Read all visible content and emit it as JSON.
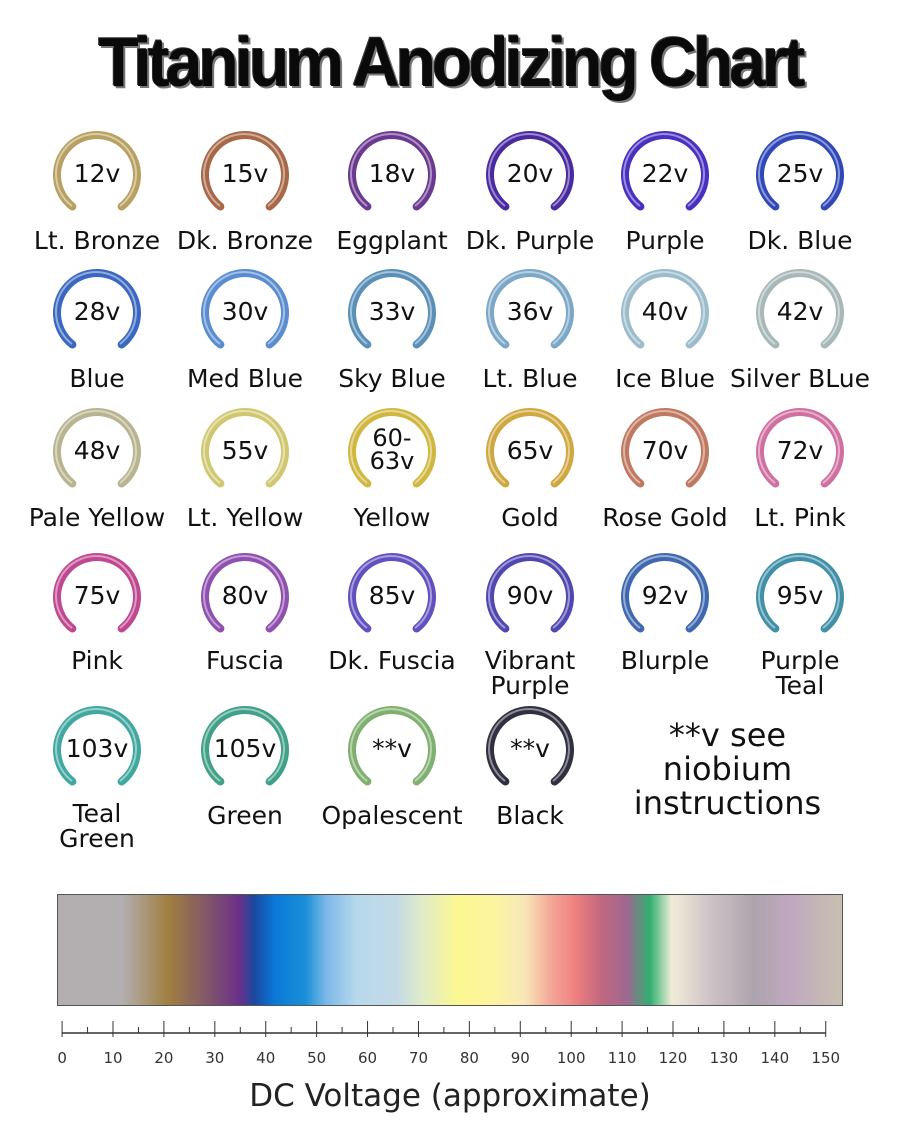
{
  "title": "Titanium Anodizing Chart",
  "items": [
    {
      "volt": "12v",
      "name": "Lt. Bronze",
      "color": "#b8a060"
    },
    {
      "volt": "15v",
      "name": "Dk. Bronze",
      "color": "#a86848"
    },
    {
      "volt": "18v",
      "name": "Eggplant",
      "color": "#6a3a90"
    },
    {
      "volt": "20v",
      "name": "Dk. Purple",
      "color": "#4a2aa0"
    },
    {
      "volt": "22v",
      "name": "Purple",
      "color": "#4a30c0"
    },
    {
      "volt": "25v",
      "name": "Dk. Blue",
      "color": "#3048b8"
    },
    {
      "volt": "28v",
      "name": "Blue",
      "color": "#3a68c0"
    },
    {
      "volt": "30v",
      "name": "Med Blue",
      "color": "#5a8cd0"
    },
    {
      "volt": "33v",
      "name": "Sky Blue",
      "color": "#5a90b8"
    },
    {
      "volt": "36v",
      "name": "Lt. Blue",
      "color": "#7ca8c8"
    },
    {
      "volt": "40v",
      "name": "Ice Blue",
      "color": "#9cbccc"
    },
    {
      "volt": "42v",
      "name": "Silver BLue",
      "color": "#a8b8b8"
    },
    {
      "volt": "48v",
      "name": "Pale Yellow",
      "color": "#b8b490"
    },
    {
      "volt": "55v",
      "name": "Lt. Yellow",
      "color": "#d0c870"
    },
    {
      "volt": "60-63v",
      "name": "Yellow",
      "color": "#d0b840"
    },
    {
      "volt": "65v",
      "name": "Gold",
      "color": "#d0a840"
    },
    {
      "volt": "70v",
      "name": "Rose Gold",
      "color": "#c07860"
    },
    {
      "volt": "72v",
      "name": "Lt. Pink",
      "color": "#d070a0"
    },
    {
      "volt": "75v",
      "name": "Pink",
      "color": "#c04890"
    },
    {
      "volt": "80v",
      "name": "Fuscia",
      "color": "#9050b0"
    },
    {
      "volt": "85v",
      "name": "Dk. Fuscia",
      "color": "#6050c0"
    },
    {
      "volt": "90v",
      "name": "Vibrant Purple",
      "color": "#5048b0"
    },
    {
      "volt": "92v",
      "name": "Blurple",
      "color": "#4068b0"
    },
    {
      "volt": "95v",
      "name": "Purple Teal",
      "color": "#4090a8"
    },
    {
      "volt": "103v",
      "name": "Teal Green",
      "color": "#40a8a0"
    },
    {
      "volt": "105v",
      "name": "Green",
      "color": "#40a088"
    },
    {
      "volt": "**v",
      "name": "Opalescent",
      "color": "#80b070"
    },
    {
      "volt": "**v",
      "name": "Black",
      "color": "#303040"
    }
  ],
  "note": "**v see niobium instructions",
  "spectrum": {
    "stops": [
      [
        -1,
        "#b3aeb0"
      ],
      [
        11.6,
        "#b3aeb0"
      ],
      [
        20.6,
        "#a08040"
      ],
      [
        26.6,
        "#8a6060"
      ],
      [
        34.7,
        "#6a3088"
      ],
      [
        37.6,
        "#1a4aa0"
      ],
      [
        41.6,
        "#0a78d8"
      ],
      [
        47.6,
        "#1a90d8"
      ],
      [
        51.6,
        "#7ab8e8"
      ],
      [
        57.6,
        "#b8d8ec"
      ],
      [
        65.6,
        "#c4dae6"
      ],
      [
        70.6,
        "#e0ecc8"
      ],
      [
        77.6,
        "#fcf890"
      ],
      [
        84.7,
        "#fcf4a0"
      ],
      [
        90.6,
        "#f8e8b8"
      ],
      [
        95.7,
        "#f4a898"
      ],
      [
        100.6,
        "#f08080"
      ],
      [
        105.7,
        "#c06880"
      ],
      [
        110.7,
        "#a06890"
      ],
      [
        115.3,
        "#30b070"
      ],
      [
        119.6,
        "#f0ecd8"
      ],
      [
        126.7,
        "#d0c4c8"
      ],
      [
        135.7,
        "#aca4ac"
      ],
      [
        142.7,
        "#c0a8c0"
      ],
      [
        153,
        "#c8c0b0"
      ]
    ],
    "axis_range": [
      -1,
      153
    ],
    "ticks": [
      "0",
      "10",
      "20",
      "30",
      "40",
      "50",
      "60",
      "70",
      "80",
      "90",
      "100",
      "110",
      "120",
      "130",
      "140",
      "150"
    ],
    "xlabel": "DC Voltage (approximate)"
  }
}
